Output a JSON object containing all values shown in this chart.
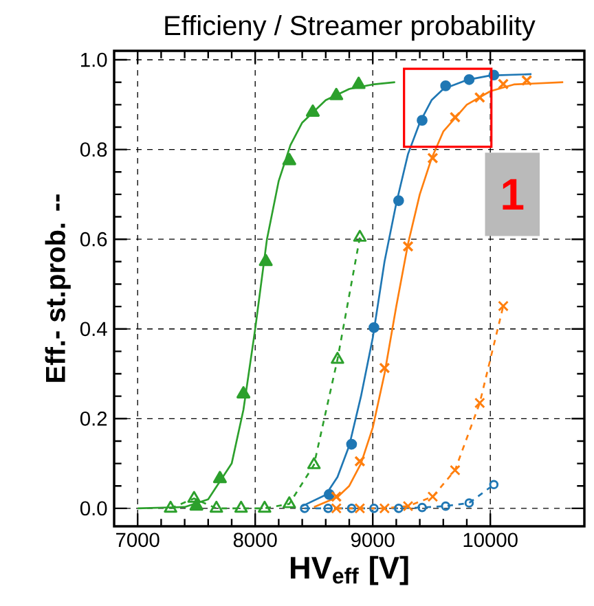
{
  "chart_data": {
    "type": "scatter",
    "title": "Efficieny / Streamer probability",
    "xlabel": "HV$_{eff}$ [V]",
    "ylabel": "Eff.- st.prob. --",
    "xlim": [
      6800,
      10800
    ],
    "ylim": [
      -0.04,
      1.02
    ],
    "xticks": [
      7000,
      8000,
      9000,
      10000
    ],
    "yticks": [
      {
        "value": 0,
        "label": "0.0"
      },
      0.2,
      0.4,
      0.6,
      0.8,
      {
        "value": 1,
        "label": "1.0"
      }
    ],
    "grid": true,
    "annotations": [
      "1"
    ],
    "series": [
      {
        "type": "line",
        "color": "#2ca02c",
        "marker": "none",
        "line_style": "solid",
        "x": [
          7000,
          7400,
          7600,
          7800,
          7900,
          8000,
          8100,
          8200,
          8300,
          8400,
          8600,
          8800,
          9000,
          9190
        ],
        "values": [
          0,
          0.003,
          0.02,
          0.1,
          0.22,
          0.4,
          0.6,
          0.73,
          0.81,
          0.86,
          0.91,
          0.935,
          0.945,
          0.95
        ]
      },
      {
        "color": "#2ca02c",
        "marker": "triangle",
        "x": [
          7500,
          7700,
          7900,
          8090,
          8290,
          8490,
          8690,
          8880
        ],
        "values": [
          0.005,
          0.066,
          0.255,
          0.55,
          0.775,
          0.883,
          0.92,
          0.945
        ]
      },
      {
        "type": "line",
        "color": "#2ca02c",
        "marker": "triangle",
        "line_style": "dashed",
        "x": [
          7280,
          7480,
          7670,
          7880,
          8080,
          8290,
          8500,
          8700,
          8890
        ],
        "values": [
          0,
          0.022,
          0,
          0,
          0,
          0.01,
          0.097,
          0.332,
          0.604
        ]
      },
      {
        "type": "line",
        "color": "#1f77b4",
        "marker": "none",
        "line_style": "solid",
        "x": [
          8400,
          8600,
          8700,
          8800,
          8900,
          9000,
          9100,
          9200,
          9300,
          9400,
          9500,
          9600,
          9800,
          10000,
          10350
        ],
        "values": [
          0.005,
          0.03,
          0.07,
          0.14,
          0.25,
          0.38,
          0.55,
          0.68,
          0.79,
          0.86,
          0.91,
          0.935,
          0.955,
          0.965,
          0.968
        ]
      },
      {
        "color": "#1f77b4",
        "marker": "circle",
        "x": [
          8630,
          8820,
          9010,
          9220,
          9420,
          9620,
          9820,
          10030
        ],
        "values": [
          0.031,
          0.143,
          0.403,
          0.686,
          0.865,
          0.942,
          0.956,
          0.966
        ]
      },
      {
        "type": "line",
        "color": "#1f77b4",
        "marker": "circle",
        "line_style": "dashed",
        "x": [
          8420,
          8620,
          8820,
          9010,
          9220,
          9420,
          9620,
          9820,
          10030
        ],
        "values": [
          0,
          0,
          0,
          0,
          0,
          0.002,
          0.005,
          0.012,
          0.053
        ]
      },
      {
        "type": "line",
        "color": "#ff7f0e",
        "marker": "none",
        "line_style": "solid",
        "x": [
          8500,
          8700,
          8800,
          8900,
          9000,
          9100,
          9200,
          9300,
          9400,
          9500,
          9600,
          9800,
          10000,
          10200,
          10620
        ],
        "values": [
          0.003,
          0.025,
          0.05,
          0.1,
          0.18,
          0.3,
          0.45,
          0.59,
          0.7,
          0.78,
          0.84,
          0.9,
          0.93,
          0.945,
          0.95
        ]
      },
      {
        "color": "#ff7f0e",
        "marker": "cross",
        "x": [
          8690,
          8890,
          9100,
          9300,
          9510,
          9700,
          9910,
          10110,
          10310
        ],
        "values": [
          0.026,
          0.105,
          0.313,
          0.584,
          0.781,
          0.872,
          0.916,
          0.946,
          0.954
        ]
      },
      {
        "type": "line",
        "color": "#ff7f0e",
        "marker": "cross",
        "line_style": "dashed",
        "x": [
          8690,
          8890,
          9100,
          9300,
          9510,
          9700,
          9910,
          10110
        ],
        "values": [
          0,
          0,
          0,
          0.005,
          0.026,
          0.085,
          0.235,
          0.451
        ]
      }
    ]
  }
}
